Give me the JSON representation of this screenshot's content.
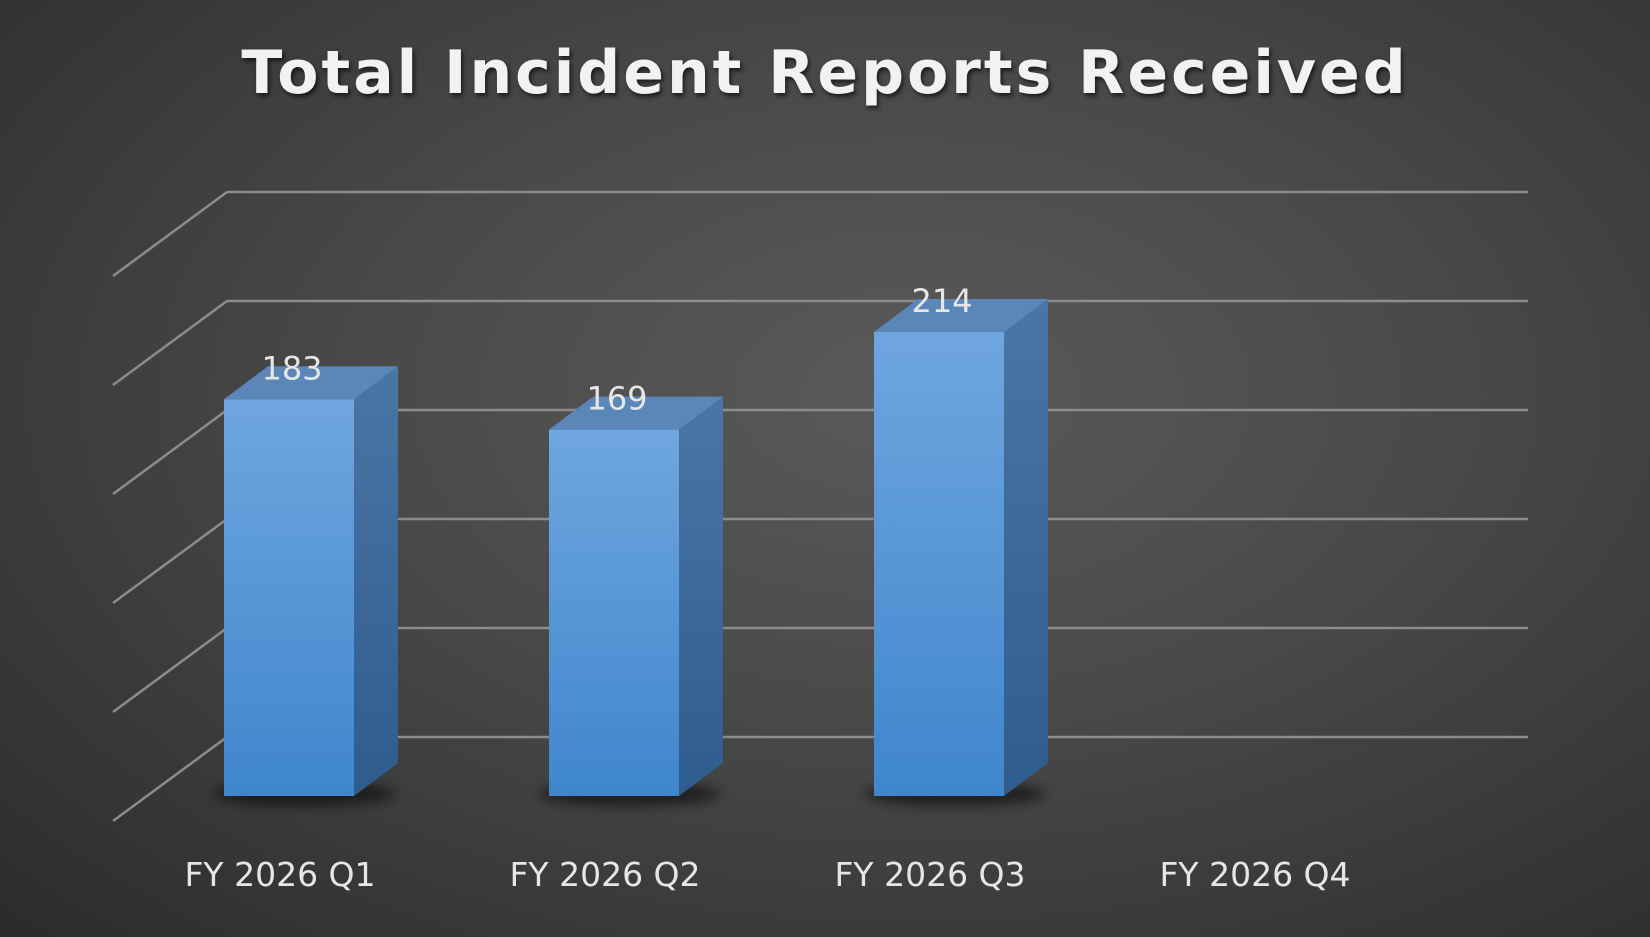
{
  "chart_data": {
    "type": "bar",
    "title": "Total Incident Reports Received",
    "categories": [
      "FY 2026 Q1",
      "FY 2026 Q2",
      "FY 2026 Q3",
      "FY 2026 Q4"
    ],
    "values": [
      183,
      169,
      214,
      null
    ],
    "ylim": [
      0,
      250
    ],
    "gridlines": [
      0,
      50,
      100,
      150,
      200,
      250
    ],
    "grid": true,
    "legend": "none",
    "data_labels": true,
    "style": "3d-column",
    "colors": {
      "bar_front": "#5b9bd5",
      "bar_side": "#3d6b99",
      "bar_top": "#5a86b8",
      "grid": "#8c8c8c",
      "text": "#e6e6e6"
    }
  }
}
